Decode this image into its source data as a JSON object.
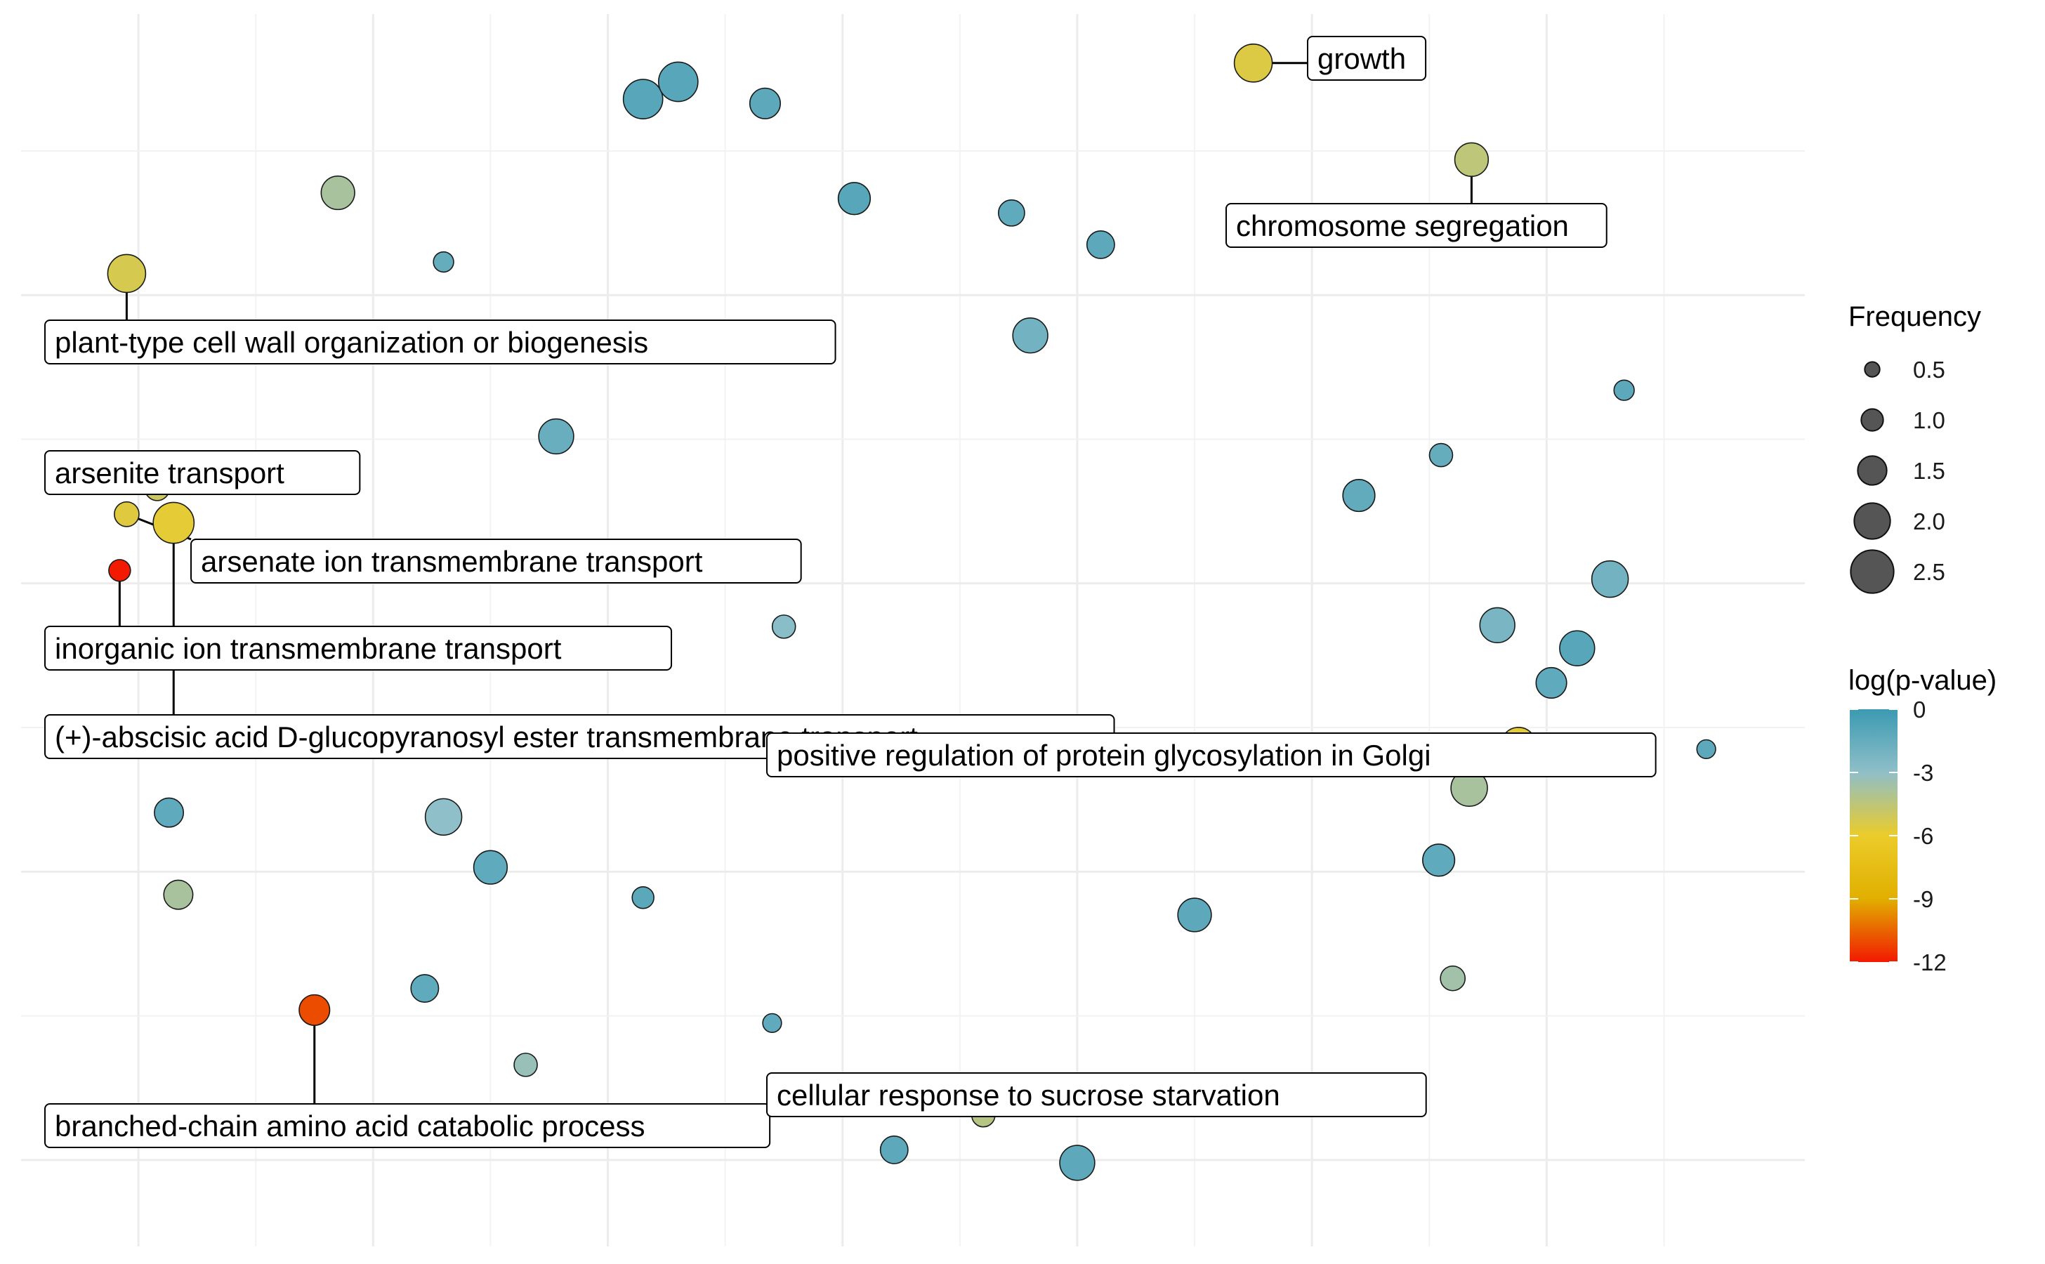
{
  "chart_data": {
    "type": "scatter",
    "title": "",
    "xlabel": "",
    "ylabel": "",
    "xlim": [
      0,
      7.6
    ],
    "ylim": [
      -7.6,
      0.95
    ],
    "grid": true,
    "legend_position": "right",
    "size_legend": {
      "title": "Frequency",
      "values": [
        0.5,
        1.0,
        1.5,
        2.0,
        2.5
      ],
      "labels": [
        "0.5",
        "1.0",
        "1.5",
        "2.0",
        "2.5"
      ]
    },
    "color_legend": {
      "title": "log(p-value)",
      "min": -12,
      "max": 0,
      "ticks": [
        0,
        -3,
        -6,
        -9,
        -12
      ],
      "tick_labels": [
        "0",
        "-3",
        "-6",
        "-9",
        "-12"
      ],
      "stops": [
        {
          "value": 0,
          "color": "#3B9AB2"
        },
        {
          "value": -3,
          "color": "#8FBFC8"
        },
        {
          "value": -6,
          "color": "#EBCC2A"
        },
        {
          "value": -9,
          "color": "#E1AF00"
        },
        {
          "value": -12,
          "color": "#F21A00"
        }
      ]
    },
    "points": [
      {
        "x": 5.25,
        "y": 0.61,
        "size": 2.0,
        "logp": -5.5,
        "label": "growth"
      },
      {
        "x": 2.65,
        "y": 0.36,
        "size": 2.1,
        "logp": -1.0
      },
      {
        "x": 2.8,
        "y": 0.48,
        "size": 2.1,
        "logp": -1.0
      },
      {
        "x": 3.17,
        "y": 0.33,
        "size": 1.5,
        "logp": -1.2
      },
      {
        "x": 6.18,
        "y": -0.06,
        "size": 1.7,
        "logp": -4.5,
        "label": "chromosome segregation"
      },
      {
        "x": 1.35,
        "y": -0.29,
        "size": 1.7,
        "logp": -3.8
      },
      {
        "x": 3.55,
        "y": -0.33,
        "size": 1.6,
        "logp": -1.0
      },
      {
        "x": 4.22,
        "y": -0.43,
        "size": 1.2,
        "logp": -1.3
      },
      {
        "x": 4.6,
        "y": -0.65,
        "size": 1.3,
        "logp": -1.2
      },
      {
        "x": 1.8,
        "y": -0.77,
        "size": 0.8,
        "logp": -1.5
      },
      {
        "x": 0.45,
        "y": -0.85,
        "size": 2.0,
        "logp": -5.3,
        "label": "plant-type cell wall organization or biogenesis"
      },
      {
        "x": 4.3,
        "y": -1.28,
        "size": 1.8,
        "logp": -2.0
      },
      {
        "x": 6.83,
        "y": -1.66,
        "size": 0.8,
        "logp": -1.2
      },
      {
        "x": 2.28,
        "y": -1.98,
        "size": 1.8,
        "logp": -1.6
      },
      {
        "x": 6.05,
        "y": -2.11,
        "size": 1.0,
        "logp": -1.5
      },
      {
        "x": 0.58,
        "y": -2.34,
        "size": 1.1,
        "logp": -5.0,
        "label": "arsenite transport"
      },
      {
        "x": 5.7,
        "y": -2.39,
        "size": 1.6,
        "logp": -1.4
      },
      {
        "x": 0.45,
        "y": -2.52,
        "size": 1.1,
        "logp": -5.6,
        "label": "arsenate ion transmembrane transport"
      },
      {
        "x": 0.65,
        "y": -2.58,
        "size": 2.2,
        "logp": -5.8,
        "label": "(+)-abscisic acid D-glucopyranosyl ester transmembrane transport"
      },
      {
        "x": 0.42,
        "y": -2.91,
        "size": 0.9,
        "logp": -12.0,
        "label": "inorganic ion transmembrane transport"
      },
      {
        "x": 6.77,
        "y": -2.97,
        "size": 1.9,
        "logp": -2.0
      },
      {
        "x": 6.29,
        "y": -3.29,
        "size": 1.8,
        "logp": -2.2
      },
      {
        "x": 3.25,
        "y": -3.3,
        "size": 1.0,
        "logp": -2.8
      },
      {
        "x": 6.63,
        "y": -3.45,
        "size": 1.8,
        "logp": -1.0
      },
      {
        "x": 6.52,
        "y": -3.69,
        "size": 1.5,
        "logp": -1.3
      },
      {
        "x": 6.38,
        "y": -4.12,
        "size": 1.8,
        "logp": -5.8,
        "label": "positive regulation of protein glycosylation in Golgi"
      },
      {
        "x": 7.18,
        "y": -4.15,
        "size": 0.7,
        "logp": -1.2
      },
      {
        "x": 6.17,
        "y": -4.42,
        "size": 1.9,
        "logp": -3.8
      },
      {
        "x": 0.63,
        "y": -4.59,
        "size": 1.4,
        "logp": -1.3
      },
      {
        "x": 1.8,
        "y": -4.62,
        "size": 1.9,
        "logp": -3.0
      },
      {
        "x": 6.04,
        "y": -4.92,
        "size": 1.6,
        "logp": -1.3
      },
      {
        "x": 2.0,
        "y": -4.97,
        "size": 1.7,
        "logp": -1.3
      },
      {
        "x": 0.67,
        "y": -5.16,
        "size": 1.4,
        "logp": -3.8
      },
      {
        "x": 2.65,
        "y": -5.18,
        "size": 0.9,
        "logp": -1.1
      },
      {
        "x": 5.0,
        "y": -5.3,
        "size": 1.7,
        "logp": -1.2
      },
      {
        "x": 6.1,
        "y": -5.74,
        "size": 1.1,
        "logp": -3.6
      },
      {
        "x": 1.72,
        "y": -5.81,
        "size": 1.3,
        "logp": -1.3
      },
      {
        "x": 1.25,
        "y": -5.96,
        "size": 1.5,
        "logp": -11.0,
        "label": "branched-chain amino acid catabolic process"
      },
      {
        "x": 3.2,
        "y": -6.05,
        "size": 0.7,
        "logp": -1.3
      },
      {
        "x": 2.15,
        "y": -6.34,
        "size": 1.0,
        "logp": -3.3
      },
      {
        "x": 4.1,
        "y": -6.69,
        "size": 1.0,
        "logp": -4.3,
        "label": "cellular response to sucrose starvation"
      },
      {
        "x": 3.72,
        "y": -6.93,
        "size": 1.3,
        "logp": -1.2
      },
      {
        "x": 4.5,
        "y": -7.02,
        "size": 1.8,
        "logp": -1.2
      }
    ]
  }
}
